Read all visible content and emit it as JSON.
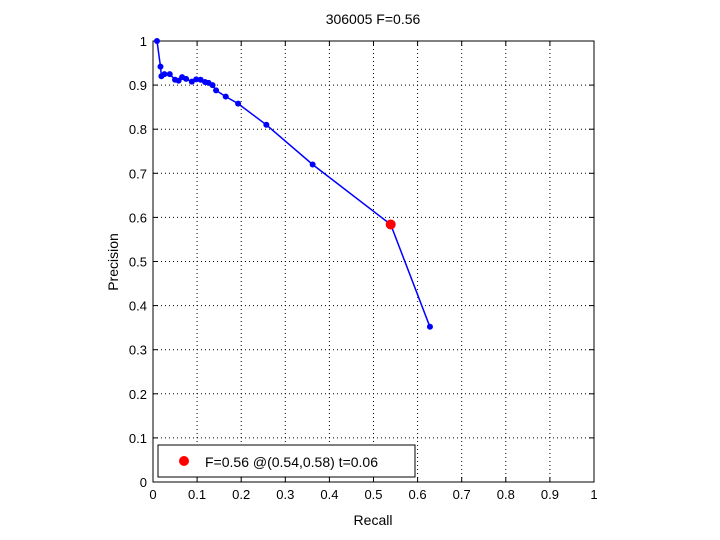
{
  "chart_data": {
    "type": "line",
    "title": "306005 F=0.56",
    "xlabel": "Recall",
    "ylabel": "Precision",
    "xlim": [
      0,
      1
    ],
    "ylim": [
      0,
      1
    ],
    "xticks": [
      "0",
      "0.1",
      "0.2",
      "0.3",
      "0.4",
      "0.5",
      "0.6",
      "0.7",
      "0.8",
      "0.9",
      "1"
    ],
    "yticks": [
      "0",
      "0.1",
      "0.2",
      "0.3",
      "0.4",
      "0.5",
      "0.6",
      "0.7",
      "0.8",
      "0.9",
      "1"
    ],
    "grid": true,
    "legend_position": "bottom-left",
    "series": [
      {
        "color": "#0000ff",
        "x": [
          0.628,
          0.539,
          0.362,
          0.257,
          0.193,
          0.165,
          0.143,
          0.135,
          0.126,
          0.118,
          0.108,
          0.098,
          0.088,
          0.075,
          0.066,
          0.058,
          0.05,
          0.038,
          0.026,
          0.019,
          0.017,
          0.009
        ],
        "y": [
          0.352,
          0.584,
          0.72,
          0.81,
          0.858,
          0.874,
          0.888,
          0.9,
          0.905,
          0.907,
          0.912,
          0.913,
          0.908,
          0.914,
          0.918,
          0.91,
          0.912,
          0.925,
          0.925,
          0.92,
          0.942,
          1.0
        ]
      }
    ],
    "highlight": {
      "x": 0.539,
      "y": 0.584,
      "color": "#ff0000",
      "label": "F=0.56 @(0.54,0.58) t=0.06"
    }
  }
}
